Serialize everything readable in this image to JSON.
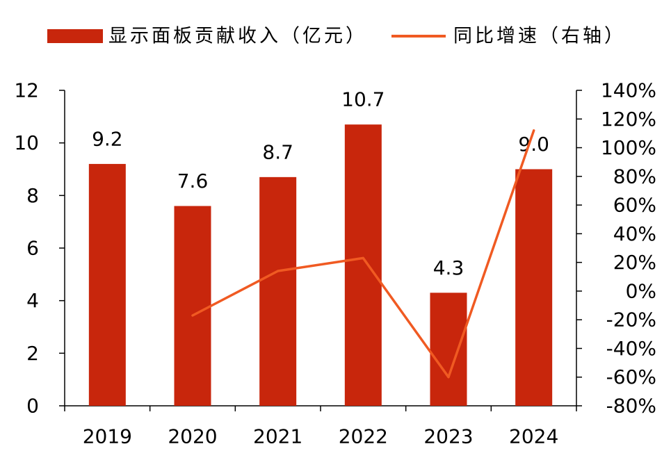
{
  "colors": {
    "bar": "#C8260C",
    "line": "#F05A22",
    "axis": "#000000",
    "text": "#000000",
    "background": "#FFFFFF"
  },
  "chart_data": {
    "type": "bar",
    "categories": [
      "2019",
      "2020",
      "2021",
      "2022",
      "2023",
      "2024"
    ],
    "series": [
      {
        "name": "显示面板贡献收入（亿元）",
        "type": "bar",
        "axis": "left",
        "values": [
          9.2,
          7.6,
          8.7,
          10.7,
          4.3,
          9.0
        ],
        "data_labels": [
          "9.2",
          "7.6",
          "8.7",
          "10.7",
          "4.3",
          "9.0"
        ]
      },
      {
        "name": "同比增速（右轴）",
        "type": "line",
        "axis": "right",
        "values": [
          null,
          -17,
          14,
          23,
          -60,
          112
        ]
      }
    ],
    "y_left": {
      "min": 0,
      "max": 12,
      "ticks": [
        "0",
        "2",
        "4",
        "6",
        "8",
        "10",
        "12"
      ]
    },
    "y_right": {
      "min": -80,
      "max": 140,
      "ticks": [
        "-80%",
        "-60%",
        "-40%",
        "-20%",
        "0%",
        "20%",
        "40%",
        "60%",
        "80%",
        "100%",
        "120%",
        "140%"
      ]
    },
    "grid": false,
    "legend_position": "top"
  }
}
